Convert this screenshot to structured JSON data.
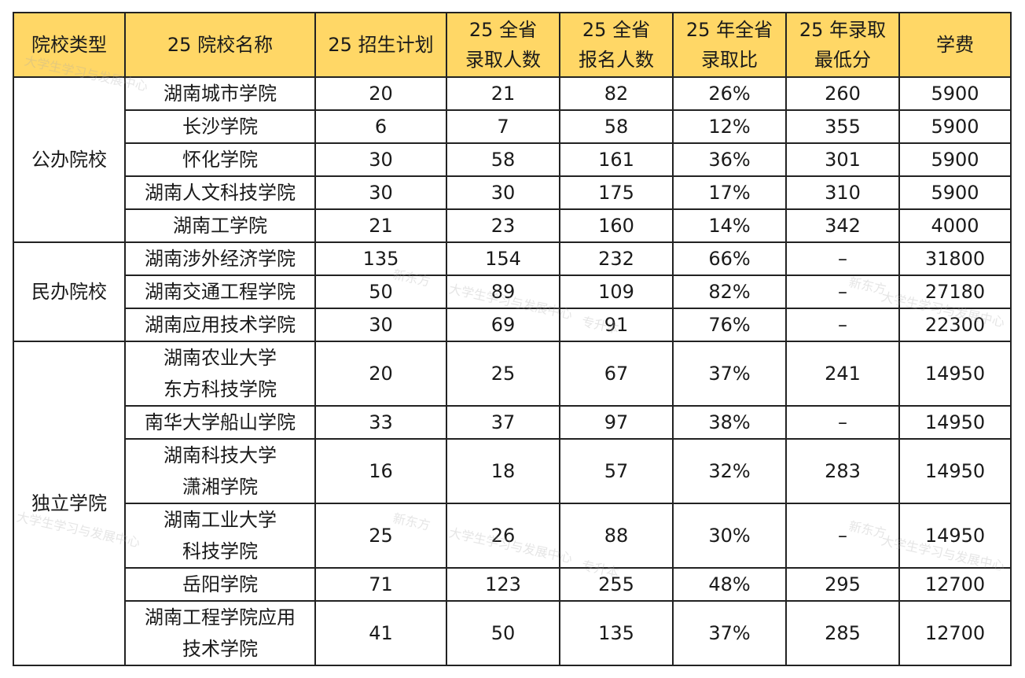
{
  "headers": {
    "type": "院校类型",
    "name": "25 院校名称",
    "plan": "25 招生计划",
    "admitted_l1": "25 全省",
    "admitted_l2": "录取人数",
    "applicants_l1": "25 全省",
    "applicants_l2": "报名人数",
    "ratio_l1": "25 年全省",
    "ratio_l2": "录取比",
    "minscore_l1": "25 年录取",
    "minscore_l2": "最低分",
    "fee": "学费"
  },
  "groups": {
    "public": "公办院校",
    "private": "民办院校",
    "independent": "独立学院"
  },
  "rows": [
    {
      "name": "湖南城市学院",
      "plan": "20",
      "admitted": "21",
      "applicants": "82",
      "ratio": "26%",
      "minscore": "260",
      "fee": "5900"
    },
    {
      "name": "长沙学院",
      "plan": "6",
      "admitted": "7",
      "applicants": "58",
      "ratio": "12%",
      "minscore": "355",
      "fee": "5900"
    },
    {
      "name": "怀化学院",
      "plan": "30",
      "admitted": "58",
      "applicants": "161",
      "ratio": "36%",
      "minscore": "301",
      "fee": "5900"
    },
    {
      "name": "湖南人文科技学院",
      "plan": "30",
      "admitted": "30",
      "applicants": "175",
      "ratio": "17%",
      "minscore": "310",
      "fee": "5900"
    },
    {
      "name": "湖南工学院",
      "plan": "21",
      "admitted": "23",
      "applicants": "160",
      "ratio": "14%",
      "minscore": "342",
      "fee": "4000"
    },
    {
      "name": "湖南涉外经济学院",
      "plan": "135",
      "admitted": "154",
      "applicants": "232",
      "ratio": "66%",
      "minscore": "–",
      "fee": "31800"
    },
    {
      "name": "湖南交通工程学院",
      "plan": "50",
      "admitted": "89",
      "applicants": "109",
      "ratio": "82%",
      "minscore": "–",
      "fee": "27180"
    },
    {
      "name": "湖南应用技术学院",
      "plan": "30",
      "admitted": "69",
      "applicants": "91",
      "ratio": "76%",
      "minscore": "–",
      "fee": "22300"
    },
    {
      "name_l1": "湖南农业大学",
      "name_l2": "东方科技学院",
      "plan": "20",
      "admitted": "25",
      "applicants": "67",
      "ratio": "37%",
      "minscore": "241",
      "fee": "14950"
    },
    {
      "name": "南华大学船山学院",
      "plan": "33",
      "admitted": "37",
      "applicants": "97",
      "ratio": "38%",
      "minscore": "–",
      "fee": "14950"
    },
    {
      "name_l1": "湖南科技大学",
      "name_l2": "潇湘学院",
      "plan": "16",
      "admitted": "18",
      "applicants": "57",
      "ratio": "32%",
      "minscore": "283",
      "fee": "14950"
    },
    {
      "name_l1": "湖南工业大学",
      "name_l2": "科技学院",
      "plan": "25",
      "admitted": "26",
      "applicants": "88",
      "ratio": "30%",
      "minscore": "–",
      "fee": "14950"
    },
    {
      "name": "岳阳学院",
      "plan": "71",
      "admitted": "123",
      "applicants": "255",
      "ratio": "48%",
      "minscore": "295",
      "fee": "12700"
    },
    {
      "name_l1": "湖南工程学院应用",
      "name_l2": "技术学院",
      "plan": "41",
      "admitted": "50",
      "applicants": "135",
      "ratio": "37%",
      "minscore": "285",
      "fee": "12700"
    }
  ],
  "watermarks": {
    "brand": "新东方",
    "center": "大学生学习与发展中心",
    "tag": "专升本"
  }
}
